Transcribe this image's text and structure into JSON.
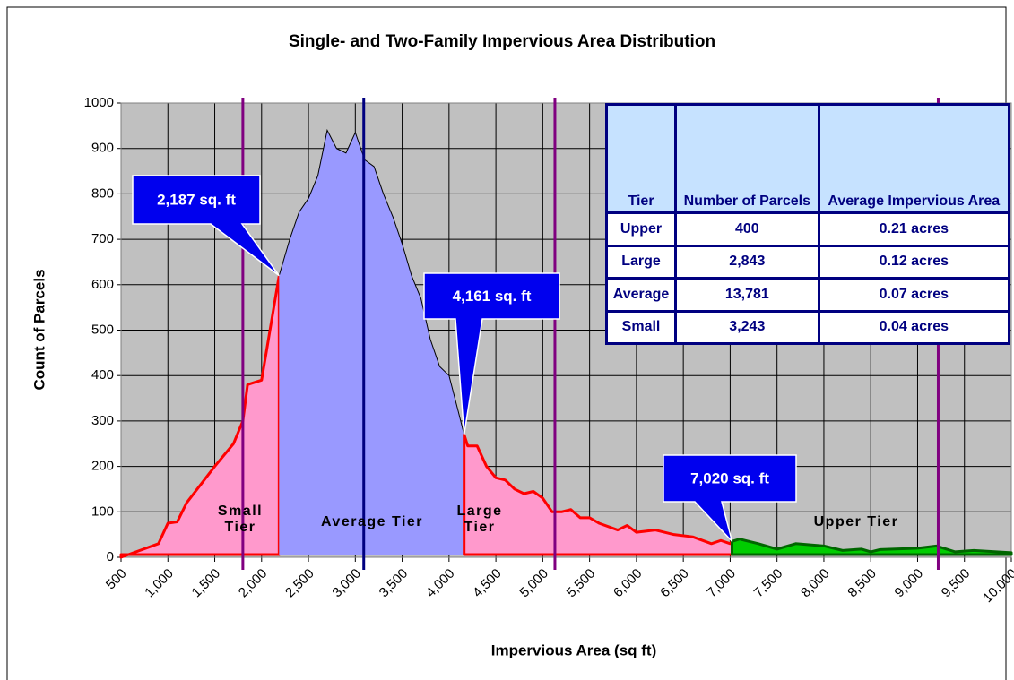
{
  "chart_data": {
    "type": "area",
    "title": "Single- and Two-Family Impervious Area Distribution",
    "x_label": "Impervious Area (sq ft)",
    "y_label": "Count of Parcels",
    "x": [
      500,
      900,
      1000,
      1100,
      1200,
      1500,
      1700,
      1800,
      1850,
      2000,
      2187,
      2300,
      2400,
      2500,
      2600,
      2700,
      2800,
      2900,
      3000,
      3100,
      3200,
      3300,
      3400,
      3500,
      3600,
      3700,
      3800,
      3900,
      4000,
      4100,
      4161,
      4200,
      4300,
      4400,
      4500,
      4600,
      4700,
      4800,
      4900,
      5000,
      5100,
      5200,
      5300,
      5400,
      5500,
      5600,
      5800,
      5900,
      6000,
      6200,
      6400,
      6600,
      6800,
      6900,
      7000,
      7020,
      7100,
      7300,
      7500,
      7700,
      8000,
      8200,
      8400,
      8500,
      8600,
      9000,
      9200,
      9400,
      9600,
      10000
    ],
    "values": [
      0,
      30,
      75,
      78,
      120,
      200,
      250,
      300,
      380,
      390,
      620,
      700,
      760,
      790,
      840,
      940,
      900,
      890,
      935,
      875,
      860,
      800,
      750,
      690,
      620,
      570,
      480,
      420,
      400,
      320,
      270,
      245,
      245,
      200,
      175,
      170,
      150,
      140,
      145,
      130,
      100,
      100,
      105,
      87,
      87,
      75,
      60,
      70,
      55,
      60,
      50,
      45,
      30,
      37,
      30,
      35,
      40,
      30,
      18,
      30,
      25,
      15,
      18,
      12,
      17,
      20,
      25,
      12,
      15,
      10
    ],
    "boundaries": {
      "values": [
        2187,
        4161,
        7020
      ],
      "value_labels": [
        "2,187 sq. ft",
        "4,161 sq. ft",
        "7,020 sq. ft"
      ]
    },
    "tiers": [
      {
        "name": "Small Tier",
        "color": "#ff99cc",
        "line_color": "#ff0000",
        "outline": true
      },
      {
        "name": "Average Tier",
        "color": "#9999ff",
        "line_color": "#000000",
        "outline": false
      },
      {
        "name": "Large Tier",
        "color": "#ff99cc",
        "line_color": "#ff0000",
        "outline": true
      },
      {
        "name": "Upper Tier",
        "color": "#00cc00",
        "line_color": "#006600",
        "outline": true
      }
    ],
    "reference_lines": [
      {
        "value": 1800,
        "color": "#800080"
      },
      {
        "value": 3090,
        "color": "#000080"
      },
      {
        "value": 5130,
        "color": "#800080"
      },
      {
        "value": 9220,
        "color": "#800080"
      }
    ],
    "xlim": [
      500,
      10000
    ],
    "ylim": [
      0,
      1000
    ],
    "xticks": [
      500,
      {
        "value": 1000,
        "label": "1,000"
      },
      {
        "value": 1500,
        "label": "1,500"
      },
      {
        "value": 2000,
        "label": "2,000"
      },
      {
        "value": 2500,
        "label": "2,500"
      },
      {
        "value": 3000,
        "label": "3,000"
      },
      {
        "value": 3500,
        "label": "3,500"
      },
      {
        "value": 4000,
        "label": "4,000"
      },
      {
        "value": 4500,
        "label": "4,500"
      },
      {
        "value": 5000,
        "label": "5,000"
      },
      {
        "value": 5500,
        "label": "5,500"
      },
      {
        "value": 6000,
        "label": "6,000"
      },
      {
        "value": 6500,
        "label": "6,500"
      },
      {
        "value": 7000,
        "label": "7,000"
      },
      {
        "value": 7500,
        "label": "7,500"
      },
      {
        "value": 8000,
        "label": "8,000"
      },
      {
        "value": 8500,
        "label": "8,500"
      },
      {
        "value": 9000,
        "label": "9,000"
      },
      {
        "value": 9500,
        "label": "9,500"
      },
      {
        "value": 10000,
        "label": "10,000"
      }
    ],
    "yticks": [
      0,
      100,
      200,
      300,
      400,
      500,
      600,
      700,
      800,
      900,
      1000
    ],
    "grid": true
  },
  "table": {
    "header": [
      "Tier",
      "Number of Parcels",
      "Average Impervious Area"
    ],
    "rows": [
      [
        "Upper",
        "400",
        "0.21 acres"
      ],
      [
        "Large",
        "2,843",
        "0.12 acres"
      ],
      [
        "Average",
        "13,781",
        "0.07 acres"
      ],
      [
        "Small",
        "3,243",
        "0.04 acres"
      ]
    ]
  }
}
